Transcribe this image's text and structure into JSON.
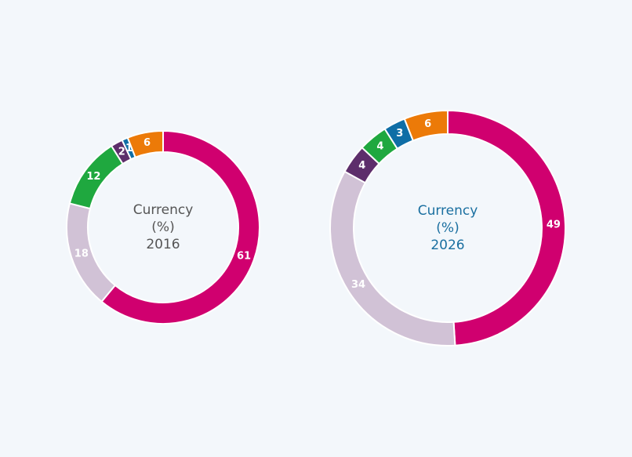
{
  "chart_data": [
    {
      "type": "donut",
      "title": "Currency",
      "subtitle": "(%)",
      "annotation": "2016",
      "title_color": "#555555",
      "values": [
        61,
        18,
        12,
        2,
        1,
        6
      ],
      "colors": [
        "#d0006f",
        "#d1c2d6",
        "#1fa83f",
        "#5d2e6b",
        "#0f6ea6",
        "#ec7a08"
      ]
    },
    {
      "type": "donut",
      "title": "Currency",
      "subtitle": "(%)",
      "annotation": "2026",
      "title_color": "#1a6fa0",
      "values": [
        49,
        34,
        4,
        4,
        3,
        6
      ],
      "colors": [
        "#d0006f",
        "#d1c2d6",
        "#5d2e6b",
        "#1fa83f",
        "#0f6ea6",
        "#ec7a08"
      ]
    }
  ]
}
